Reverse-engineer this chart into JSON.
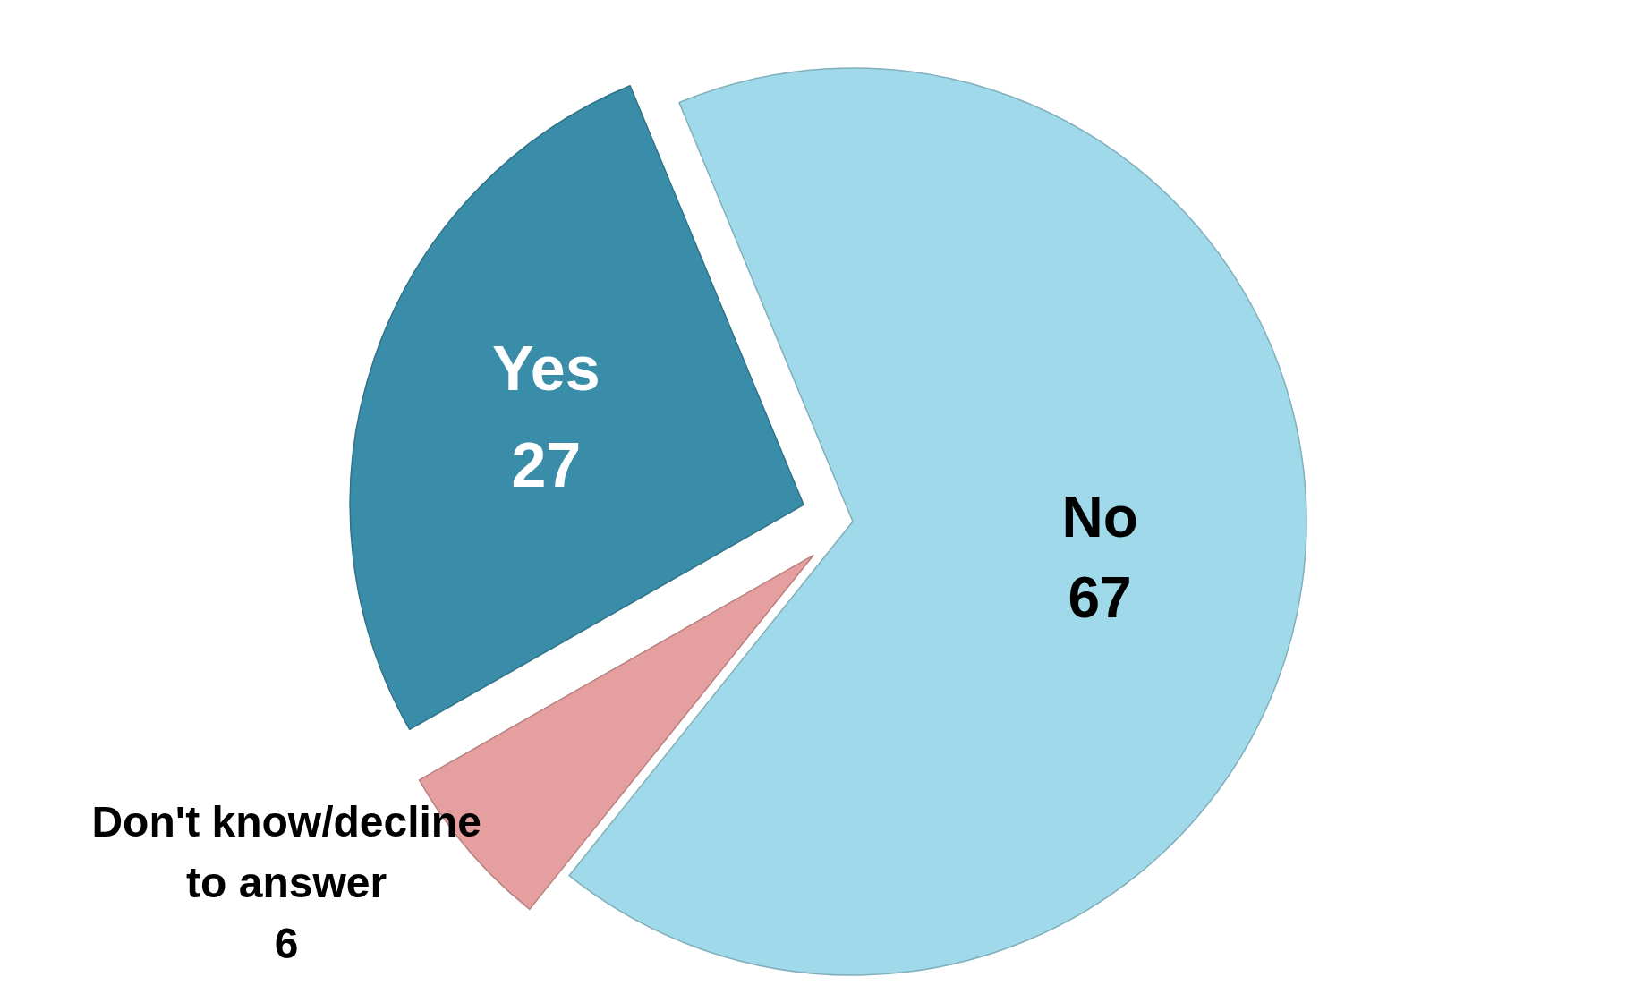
{
  "chart_data": {
    "type": "pie",
    "categories": [
      "No",
      "Don't know/decline to answer",
      "Yes"
    ],
    "values": [
      67,
      6,
      27
    ],
    "colors": [
      "#a0d9e9",
      "#e59f9f",
      "#3a8da8"
    ],
    "data_labels": true
  }
}
